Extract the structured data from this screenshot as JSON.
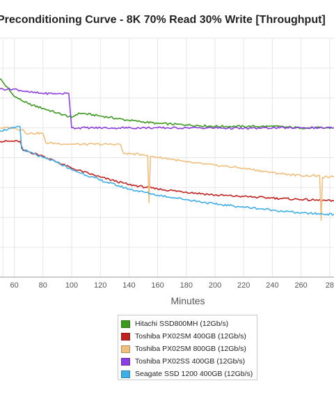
{
  "chart_data": {
    "type": "line",
    "title": "Preconditioning Curve - 8K 70% Read 30% Write [Throughput]",
    "xlabel": "Minutes",
    "ylabel": "",
    "xlim": [
      50,
      283
    ],
    "ylim": [
      0,
      8
    ],
    "x_ticks": [
      "60",
      "80",
      "100",
      "120",
      "140",
      "160",
      "180",
      "200",
      "220",
      "240",
      "260",
      "28"
    ],
    "grid": true,
    "legend_position": "bottom-center",
    "series": [
      {
        "name": "Hitachi SSD800MH (12Gb/s)",
        "color": "#3c9a1e",
        "points": [
          [
            50,
            6.65
          ],
          [
            60,
            6.05
          ],
          [
            70,
            5.8
          ],
          [
            80,
            5.65
          ],
          [
            90,
            5.5
          ],
          [
            100,
            5.35
          ],
          [
            105,
            5.5
          ],
          [
            120,
            5.4
          ],
          [
            140,
            5.25
          ],
          [
            160,
            5.15
          ],
          [
            180,
            5.1
          ],
          [
            200,
            5.05
          ],
          [
            220,
            5.05
          ],
          [
            240,
            5.05
          ],
          [
            260,
            5.0
          ],
          [
            283,
            5.0
          ]
        ]
      },
      {
        "name": "Toshiba PX02SM 400GB (12Gb/s)",
        "color": "#c0221f",
        "points": [
          [
            50,
            4.55
          ],
          [
            60,
            4.55
          ],
          [
            64,
            4.55
          ],
          [
            66,
            4.25
          ],
          [
            70,
            4.2
          ],
          [
            80,
            4.05
          ],
          [
            90,
            3.85
          ],
          [
            100,
            3.65
          ],
          [
            120,
            3.35
          ],
          [
            140,
            3.1
          ],
          [
            160,
            2.95
          ],
          [
            180,
            2.85
          ],
          [
            200,
            2.75
          ],
          [
            220,
            2.7
          ],
          [
            240,
            2.65
          ],
          [
            260,
            2.6
          ],
          [
            283,
            2.55
          ]
        ]
      },
      {
        "name": "Toshiba PX02SM 800GB (12Gb/s)",
        "color": "#f0bf7e",
        "points": [
          [
            50,
            5.0
          ],
          [
            60,
            5.0
          ],
          [
            62,
            4.95
          ],
          [
            66,
            4.95
          ],
          [
            68,
            4.82
          ],
          [
            80,
            4.82
          ],
          [
            82,
            4.5
          ],
          [
            100,
            4.45
          ],
          [
            134,
            4.45
          ],
          [
            136,
            4.15
          ],
          [
            150,
            4.1
          ],
          [
            153,
            4.08
          ],
          [
            154,
            2.5
          ],
          [
            155,
            4.05
          ],
          [
            170,
            3.95
          ],
          [
            180,
            3.85
          ],
          [
            200,
            3.75
          ],
          [
            220,
            3.65
          ],
          [
            240,
            3.5
          ],
          [
            260,
            3.4
          ],
          [
            273,
            3.4
          ],
          [
            274,
            1.9
          ],
          [
            275,
            3.35
          ],
          [
            283,
            3.35
          ]
        ]
      },
      {
        "name": "Toshiba PX02SS 400GB (12Gb/s)",
        "color": "#8b3fe0",
        "points": [
          [
            50,
            6.3
          ],
          [
            60,
            6.3
          ],
          [
            70,
            6.2
          ],
          [
            80,
            6.15
          ],
          [
            90,
            6.15
          ],
          [
            98,
            6.15
          ],
          [
            100,
            5.0
          ],
          [
            110,
            5.0
          ],
          [
            130,
            5.0
          ],
          [
            160,
            5.0
          ],
          [
            180,
            5.0
          ],
          [
            200,
            5.0
          ],
          [
            220,
            4.98
          ],
          [
            240,
            5.0
          ],
          [
            260,
            5.0
          ],
          [
            283,
            5.0
          ]
        ]
      },
      {
        "name": "Seagate SSD 1200 400GB (12Gb/s)",
        "color": "#3daee6",
        "points": [
          [
            50,
            4.9
          ],
          [
            60,
            5.0
          ],
          [
            62,
            5.05
          ],
          [
            64,
            5.05
          ],
          [
            65,
            4.3
          ],
          [
            70,
            4.2
          ],
          [
            80,
            4.0
          ],
          [
            90,
            3.85
          ],
          [
            100,
            3.6
          ],
          [
            120,
            3.25
          ],
          [
            140,
            2.95
          ],
          [
            160,
            2.75
          ],
          [
            180,
            2.6
          ],
          [
            200,
            2.45
          ],
          [
            220,
            2.35
          ],
          [
            240,
            2.25
          ],
          [
            260,
            2.15
          ],
          [
            283,
            2.1
          ]
        ]
      }
    ]
  }
}
